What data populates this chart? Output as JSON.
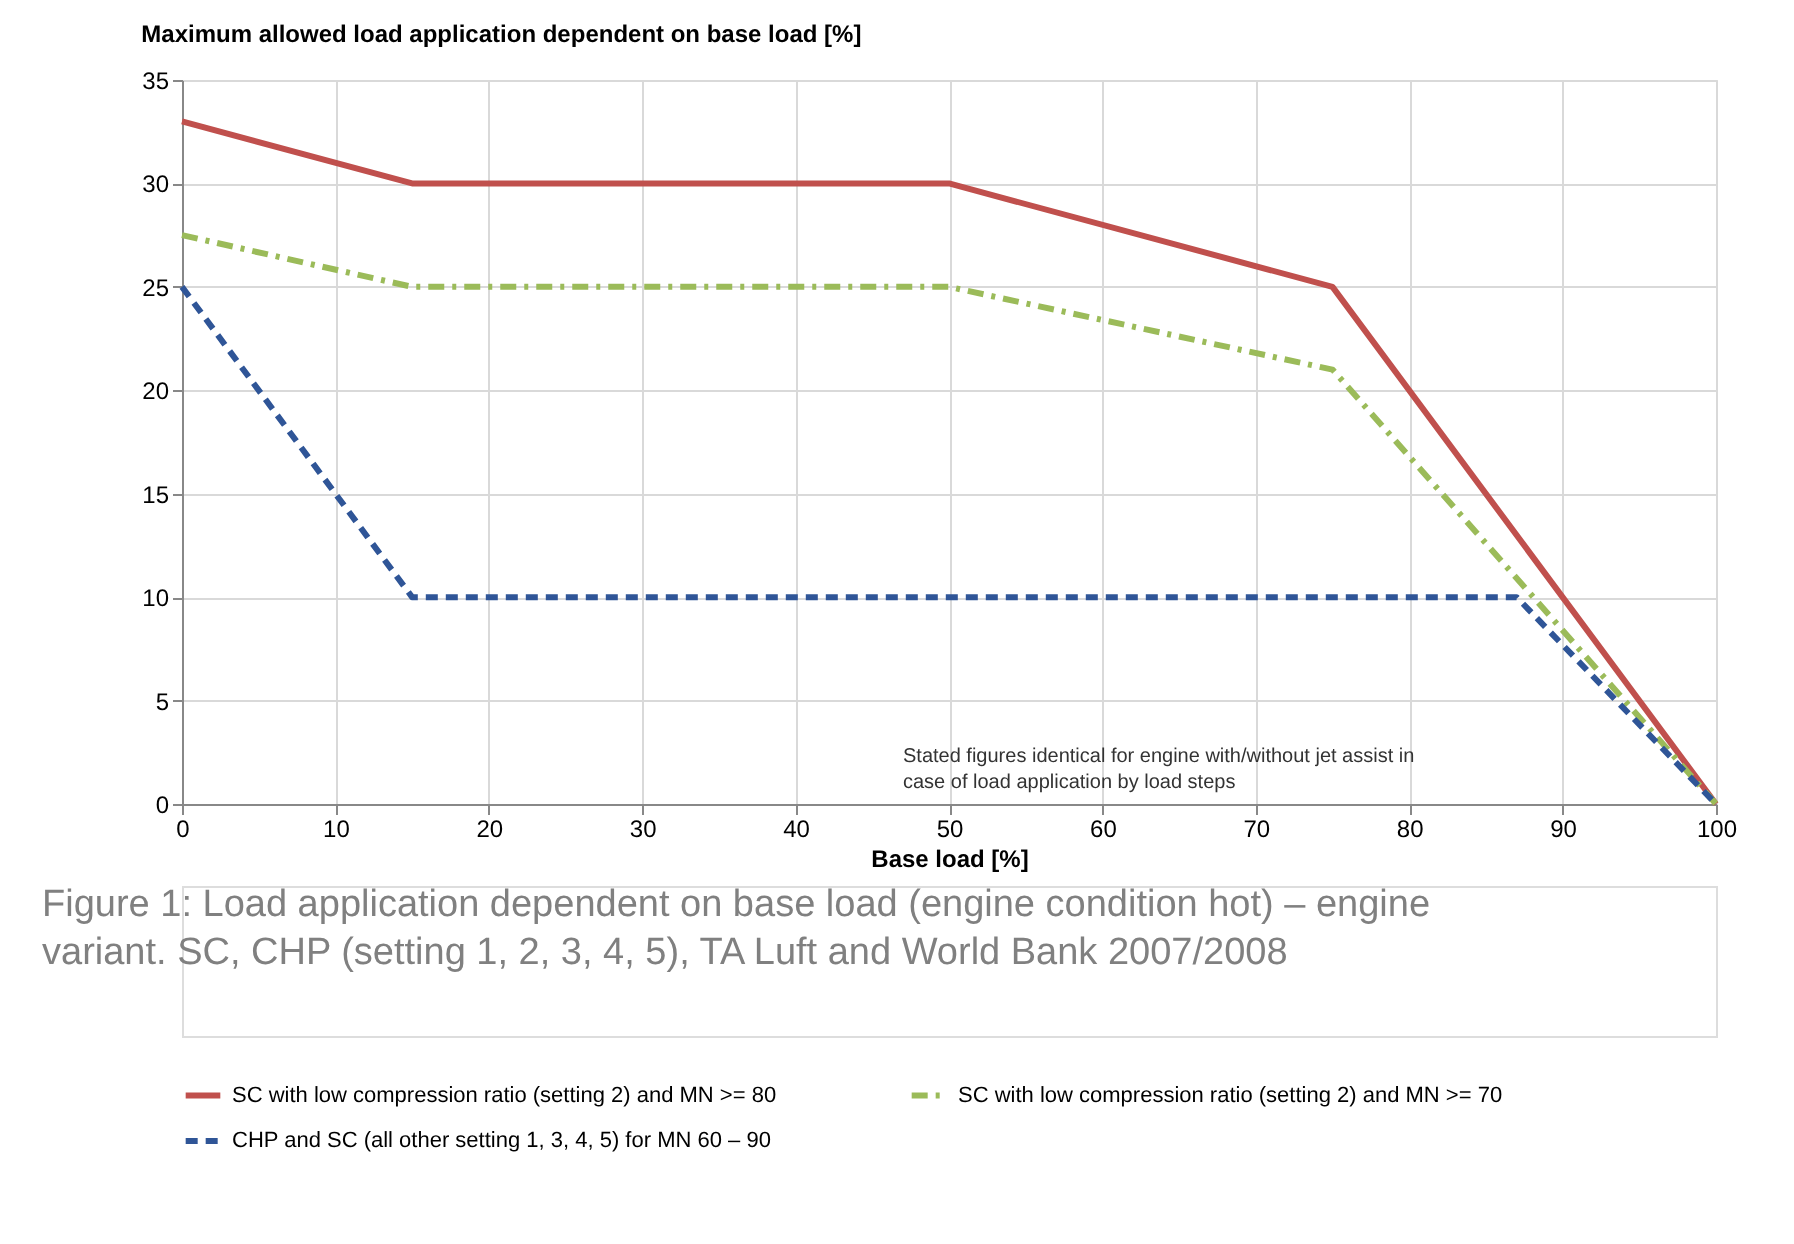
{
  "chart_data": {
    "type": "line",
    "title": "Maximum allowed load application dependent on base load  [%]",
    "xlabel": "Base load [%]",
    "xlim": [
      0,
      100
    ],
    "ylim": [
      0,
      35
    ],
    "xticks": [
      0,
      10,
      20,
      30,
      40,
      50,
      60,
      70,
      80,
      90,
      100
    ],
    "yticks": [
      0,
      5,
      10,
      15,
      20,
      25,
      30,
      35
    ],
    "grid": true,
    "legend": "bottom",
    "marker": "none",
    "series": [
      {
        "name": "SC with low compression ratio (setting 2) and MN >= 80",
        "color": "#c0504d",
        "line_style": "solid",
        "x": [
          0,
          15,
          50,
          75,
          100
        ],
        "values": [
          33,
          30,
          30,
          25,
          0
        ]
      },
      {
        "name": "SC with low compression ratio (setting 2) and MN >= 70",
        "color": "#9bbb59",
        "line_style": "dashdot",
        "x": [
          0,
          15,
          50,
          75,
          100
        ],
        "values": [
          27.5,
          25,
          25,
          21,
          0
        ]
      },
      {
        "name": "CHP and SC (all other setting 1, 3, 4, 5) for MN 60 – 90",
        "color": "#2f5597",
        "line_style": "dashed",
        "x": [
          0,
          15,
          87,
          100
        ],
        "values": [
          25,
          10,
          10,
          0
        ]
      }
    ],
    "annotations": [
      "Stated figures identical for engine with/without jet assist in case of load application by load steps",
      "Figure 1: Load application dependent on base load (engine condition hot) – engine variant. SC, CHP (setting 1, 2, 3, 4, 5), TA Luft and World Bank 2007/2008"
    ]
  }
}
